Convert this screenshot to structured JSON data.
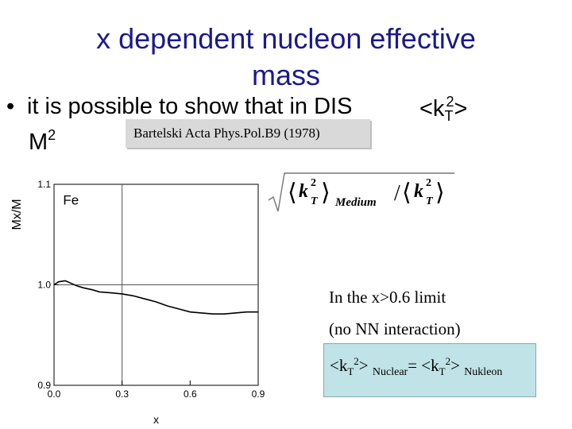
{
  "slide": {
    "title_line1": "x dependent nucleon effective",
    "title_line2": "mass",
    "bullet_text": "it is possible to show that in DIS",
    "bullet_symbol": "•",
    "m2_base": "M",
    "m2_exp": "2",
    "kt_open": "<k",
    "kt_sub": "T",
    "kt_sup": "2",
    "kt_close": ">",
    "reference": "Bartelski Acta Phys.Pol.B9 (1978)",
    "formula": {
      "k": "k",
      "t": "T",
      "two": "2",
      "medium": "Medium",
      "slash": "/"
    },
    "note_line1": "In the x>0.6 limit",
    "note_line2": "(no NN interaction)",
    "equation": {
      "part1": "<k",
      "t1": "T",
      "sq1": "2",
      "part2": "> ",
      "nuclear": "Nuclear",
      "equals": "= <k",
      "t2": "T",
      "sq2": "2",
      "part3": "> ",
      "nukleon": "Nukleon"
    },
    "colors": {
      "title": "#1a1a8c",
      "eq_box": "#bfe3e6",
      "ref_box": "#d9d9d9"
    }
  },
  "chart_data": {
    "type": "line",
    "title": "",
    "annotation": "Fe",
    "xlabel": "x",
    "ylabel": "Mx/M",
    "xlim": [
      0.0,
      0.9
    ],
    "ylim": [
      0.9,
      1.1
    ],
    "x_ticks": [
      0.0,
      0.3,
      0.6,
      0.9
    ],
    "x_tick_labels": [
      "0.0",
      "0.3",
      "0.6",
      "0.9"
    ],
    "y_ticks": [
      0.9,
      1.0,
      1.1
    ],
    "y_tick_labels": [
      "0.9",
      "1.0",
      "1.1"
    ],
    "reference_line_x": 0.3,
    "reference_line_y": 1.0,
    "series": [
      {
        "name": "Fe",
        "x": [
          0.0,
          0.02,
          0.05,
          0.08,
          0.1,
          0.13,
          0.17,
          0.2,
          0.25,
          0.3,
          0.35,
          0.4,
          0.45,
          0.5,
          0.55,
          0.6,
          0.65,
          0.7,
          0.75,
          0.8,
          0.85,
          0.9
        ],
        "y": [
          1.0,
          1.003,
          1.004,
          1.001,
          0.999,
          0.997,
          0.995,
          0.993,
          0.992,
          0.991,
          0.989,
          0.986,
          0.983,
          0.979,
          0.976,
          0.973,
          0.972,
          0.971,
          0.971,
          0.972,
          0.973,
          0.973
        ]
      }
    ]
  }
}
